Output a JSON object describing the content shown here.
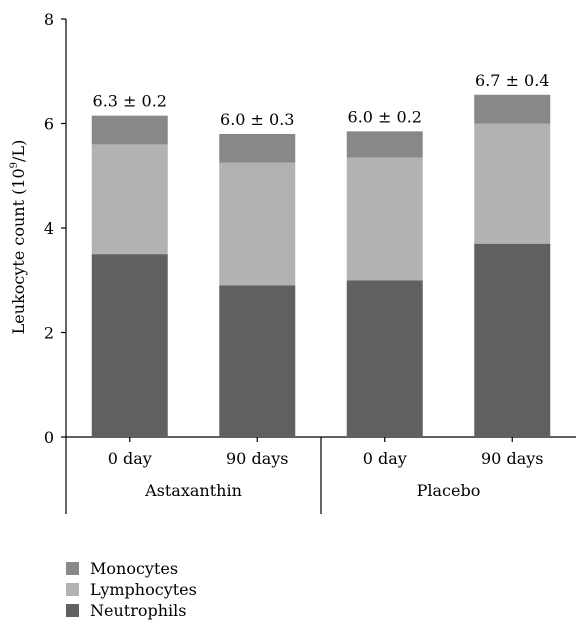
{
  "chart_data": {
    "type": "bar",
    "stacked": true,
    "ylabel": "Leukocyte count (10",
    "ylabel_sup": "9",
    "ylabel_tail": "/L)",
    "ylim": [
      0,
      8
    ],
    "yticks": [
      "0",
      "2",
      "4",
      "6",
      "8"
    ],
    "categories": [
      "0 day",
      "90 days",
      "0 day",
      "90 days"
    ],
    "groups": [
      {
        "label": "Astaxanthin",
        "categories": [
          0,
          1
        ]
      },
      {
        "label": "Placebo",
        "categories": [
          2,
          3
        ]
      }
    ],
    "totals_labels": [
      "6.3 ± 0.2",
      "6.0 ± 0.3",
      "6.0 ± 0.2",
      "6.7 ± 0.4"
    ],
    "series": [
      {
        "name": "Neutrophils",
        "color": "#606060",
        "values": [
          3.5,
          2.9,
          3.0,
          3.7
        ]
      },
      {
        "name": "Lymphocytes",
        "color": "#b2b2b2",
        "values": [
          2.1,
          2.35,
          2.35,
          2.3
        ]
      },
      {
        "name": "Monocytes",
        "color": "#888888",
        "values": [
          0.55,
          0.55,
          0.5,
          0.55
        ]
      }
    ],
    "legend": {
      "position": "bottom-left",
      "order": [
        "Monocytes",
        "Lymphocytes",
        "Neutrophils"
      ]
    }
  }
}
